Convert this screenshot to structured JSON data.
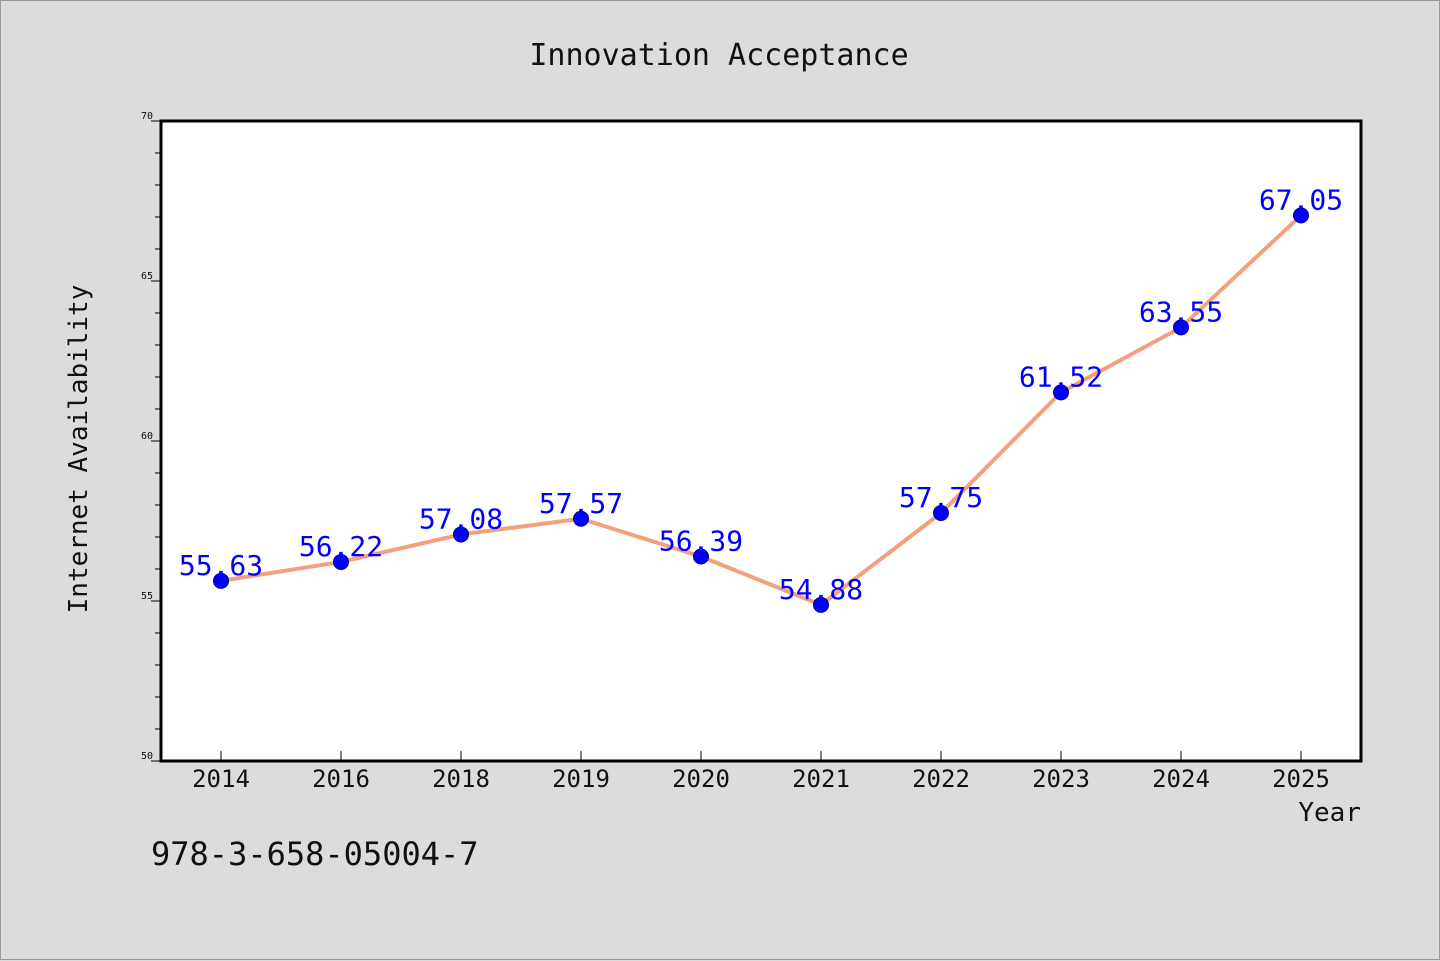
{
  "chart_data": {
    "type": "line",
    "title": "Innovation Acceptance",
    "xlabel": "Year",
    "ylabel": "Internet Availability",
    "categories": [
      "2014",
      "2016",
      "2018",
      "2019",
      "2020",
      "2021",
      "2022",
      "2023",
      "2024",
      "2025"
    ],
    "series": [
      {
        "values": [
          55.63,
          56.22,
          57.08,
          57.57,
          56.39,
          54.88,
          57.75,
          61.52,
          63.55,
          67.05
        ],
        "labels": [
          "55.63",
          "56.22",
          "57.08",
          "57.57",
          "56.39",
          "54.88",
          "57.75",
          "61.52",
          "63.55",
          "67.05"
        ],
        "line_color": "#f4a07e",
        "marker_color": "#0000ff"
      }
    ],
    "ylim": [
      50,
      70
    ],
    "yticks": [
      "50",
      "55",
      "60",
      "65",
      "70"
    ],
    "grid": false,
    "legend": "none",
    "colors": {
      "background": "#dcdcdc",
      "plot_background": "#ffffff",
      "label_color": "#0000ff"
    }
  },
  "footer": {
    "isbn": "978-3-658-05004-7"
  }
}
